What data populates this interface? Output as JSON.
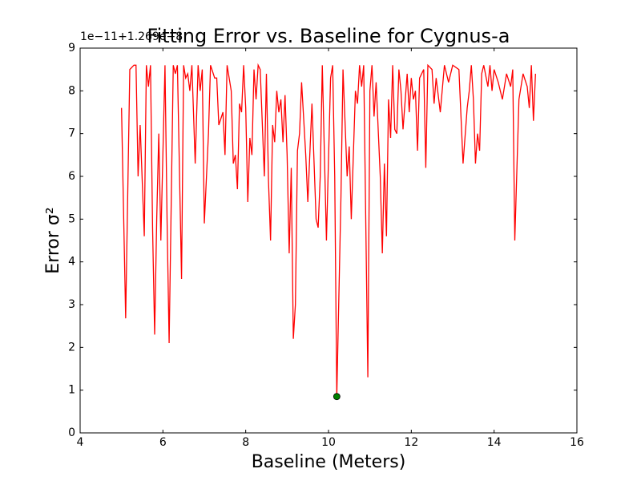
{
  "chart_data": {
    "type": "line",
    "title": "Fitting Error vs. Baseline for Cygnus-a",
    "offset_text": "1e−11+1.269e−8",
    "xlabel": "Baseline (Meters)",
    "ylabel": "Error σ²",
    "color": "#ff0000",
    "xlim": [
      4,
      16
    ],
    "xticks": [
      4,
      6,
      8,
      10,
      12,
      14,
      16
    ],
    "ylim": [
      0,
      9
    ],
    "yticks": [
      0,
      1,
      2,
      3,
      4,
      5,
      6,
      7,
      8,
      9
    ],
    "x": [
      5.0,
      5.1,
      5.2,
      5.3,
      5.35,
      5.4,
      5.45,
      5.55,
      5.6,
      5.65,
      5.7,
      5.75,
      5.8,
      5.85,
      5.9,
      5.95,
      6.05,
      6.1,
      6.15,
      6.25,
      6.3,
      6.35,
      6.45,
      6.5,
      6.55,
      6.6,
      6.65,
      6.7,
      6.78,
      6.85,
      6.9,
      6.95,
      7.0,
      7.1,
      7.15,
      7.25,
      7.3,
      7.35,
      7.45,
      7.5,
      7.55,
      7.65,
      7.7,
      7.75,
      7.8,
      7.85,
      7.9,
      7.95,
      8.0,
      8.05,
      8.1,
      8.15,
      8.2,
      8.25,
      8.3,
      8.35,
      8.45,
      8.5,
      8.55,
      8.6,
      8.65,
      8.7,
      8.75,
      8.8,
      8.85,
      8.9,
      8.95,
      9.0,
      9.05,
      9.1,
      9.15,
      9.2,
      9.25,
      9.3,
      9.35,
      9.45,
      9.5,
      9.6,
      9.7,
      9.75,
      9.8,
      9.85,
      9.95,
      10.05,
      10.1,
      10.15,
      10.2,
      10.3,
      10.35,
      10.45,
      10.5,
      10.55,
      10.65,
      10.7,
      10.75,
      10.8,
      10.85,
      10.95,
      11.0,
      11.05,
      11.1,
      11.15,
      11.25,
      11.3,
      11.35,
      11.4,
      11.45,
      11.5,
      11.55,
      11.6,
      11.65,
      11.7,
      11.75,
      11.8,
      11.9,
      11.95,
      12.0,
      12.05,
      12.1,
      12.15,
      12.2,
      12.3,
      12.35,
      12.4,
      12.5,
      12.55,
      12.6,
      12.7,
      12.8,
      12.9,
      13.0,
      13.15,
      13.25,
      13.35,
      13.4,
      13.45,
      13.5,
      13.55,
      13.6,
      13.65,
      13.7,
      13.75,
      13.85,
      13.9,
      13.95,
      14.0,
      14.1,
      14.2,
      14.3,
      14.4,
      14.45,
      14.5,
      14.6,
      14.7,
      14.8,
      14.85,
      14.9,
      14.95,
      15.0
    ],
    "values": [
      7.6,
      2.68,
      8.5,
      8.6,
      8.6,
      6.0,
      7.2,
      4.6,
      8.6,
      8.1,
      8.6,
      4.8,
      2.3,
      5.0,
      7.0,
      4.5,
      8.6,
      5.0,
      2.1,
      8.6,
      8.4,
      8.6,
      3.6,
      8.6,
      8.3,
      8.4,
      8.0,
      8.6,
      6.3,
      8.6,
      8.0,
      8.5,
      4.9,
      7.0,
      8.6,
      8.3,
      8.3,
      7.2,
      7.5,
      6.5,
      8.6,
      8.0,
      6.3,
      6.5,
      5.7,
      7.7,
      7.5,
      8.6,
      7.6,
      5.4,
      6.9,
      6.5,
      8.5,
      7.8,
      8.6,
      8.5,
      6.0,
      8.4,
      5.9,
      4.5,
      7.2,
      6.8,
      8.0,
      7.5,
      7.8,
      6.8,
      7.9,
      6.5,
      4.2,
      6.2,
      2.2,
      3.0,
      6.6,
      7.0,
      8.2,
      6.5,
      5.4,
      7.7,
      5.0,
      4.8,
      6.0,
      8.6,
      4.5,
      8.3,
      8.6,
      6.0,
      0.85,
      5.5,
      8.5,
      6.0,
      6.7,
      5.0,
      8.0,
      7.7,
      8.6,
      8.1,
      8.6,
      1.3,
      8.0,
      8.6,
      7.4,
      8.2,
      6.0,
      4.2,
      6.3,
      4.6,
      7.8,
      6.9,
      8.6,
      7.1,
      7.0,
      8.5,
      8.0,
      7.1,
      8.4,
      7.5,
      8.3,
      7.8,
      8.0,
      6.6,
      8.3,
      8.5,
      6.2,
      8.6,
      8.5,
      7.7,
      8.3,
      7.5,
      8.6,
      8.2,
      8.6,
      8.5,
      6.3,
      7.6,
      8.0,
      8.6,
      7.8,
      6.3,
      7.0,
      6.6,
      8.4,
      8.6,
      8.1,
      8.6,
      8.0,
      8.5,
      8.2,
      7.8,
      8.4,
      8.1,
      8.5,
      4.5,
      7.8,
      8.4,
      8.1,
      7.6,
      8.6,
      7.3,
      8.4
    ],
    "marker": {
      "x": 10.2,
      "y": 0.85,
      "color": "#008000"
    }
  }
}
